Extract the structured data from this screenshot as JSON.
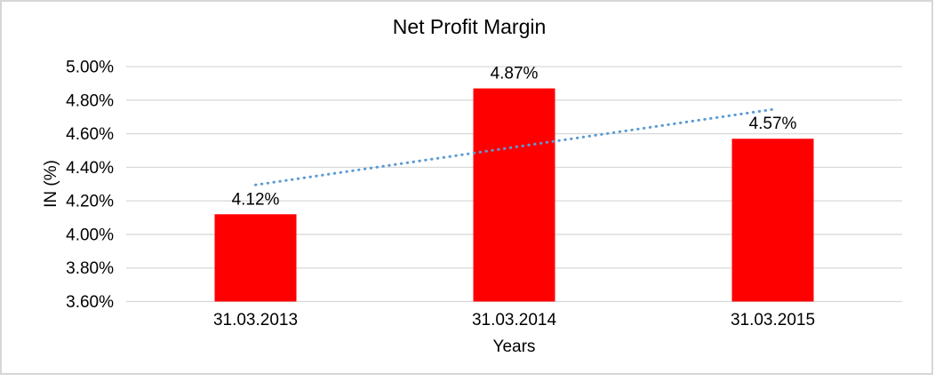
{
  "frame": {
    "border_color": "#D6D6D6",
    "background": "#FFFFFF"
  },
  "chart_data": {
    "type": "bar",
    "title": "Net Profit Margin",
    "xlabel": "Years",
    "ylabel": "IN (%)",
    "categories": [
      "31.03.2013",
      "31.03.2014",
      "31.03.2015"
    ],
    "values": [
      4.12,
      4.87,
      4.57
    ],
    "data_labels": [
      "4.12%",
      "4.87%",
      "4.57%"
    ],
    "ytick_values": [
      5.0,
      4.8,
      4.6,
      4.4,
      4.2,
      4.0,
      3.8,
      3.6
    ],
    "ytick_labels": [
      "5.00%",
      "4.80%",
      "4.60%",
      "4.40%",
      "4.20%",
      "4.00%",
      "3.80%",
      "3.60%"
    ],
    "ylim": [
      3.6,
      5.0
    ],
    "grid": true,
    "legend": false,
    "bar_color": "#FF0000",
    "gridline_color": "#D9D9D9",
    "text_color": "#000000",
    "trendline": {
      "type": "linear",
      "style": "dotted",
      "color": "#5B9BD5",
      "start_value": 4.295,
      "end_value": 4.745
    }
  }
}
